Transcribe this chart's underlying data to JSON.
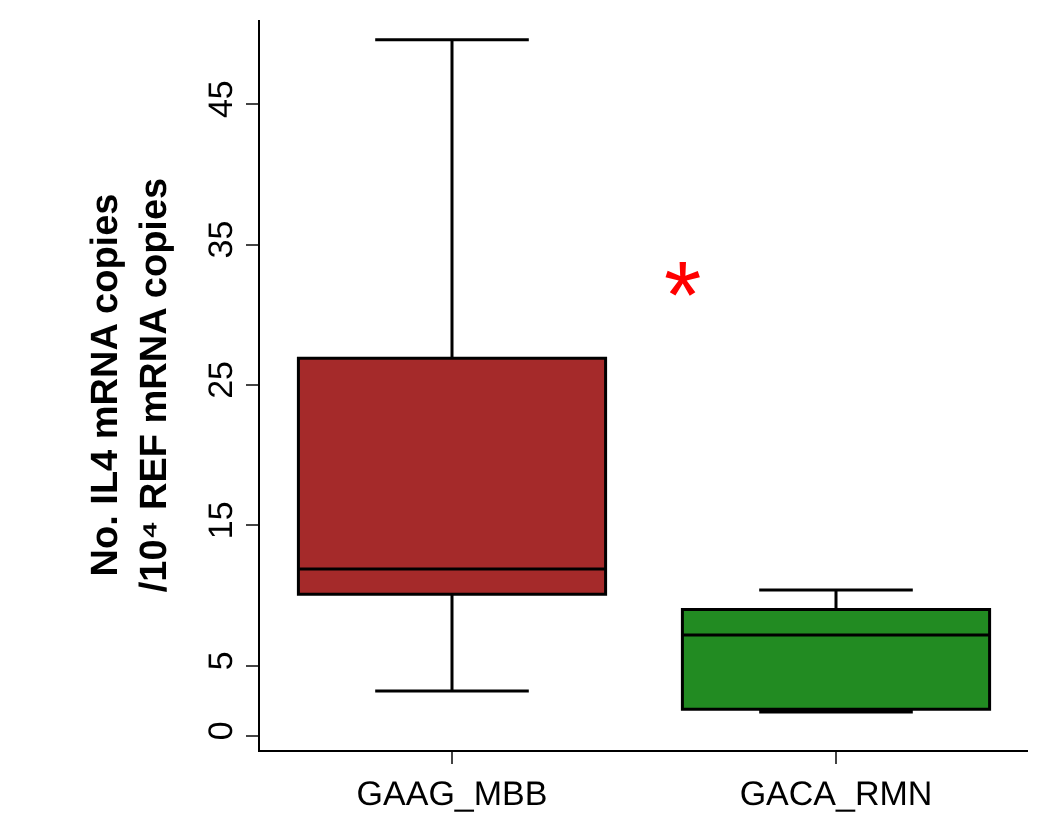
{
  "chart_data": {
    "type": "box",
    "ylabel": "No. IL4 mRNA copies\n/10⁴ REF mRNA copies",
    "categories": [
      "GAAG_MBB",
      "GACA_RMN"
    ],
    "colors": [
      "#a52a2a",
      "#228b22"
    ],
    "boxes": [
      {
        "low": 3.2,
        "q1": 10.1,
        "median": 11.9,
        "q3": 26.9,
        "high": 49.6
      },
      {
        "low": 1.7,
        "q1": 1.9,
        "median": 7.2,
        "q3": 9.0,
        "high": 10.4
      }
    ],
    "ylim": [
      -1,
      51
    ],
    "yticks": [
      0,
      5,
      15,
      25,
      35,
      45
    ],
    "annotations": [
      "*"
    ]
  }
}
